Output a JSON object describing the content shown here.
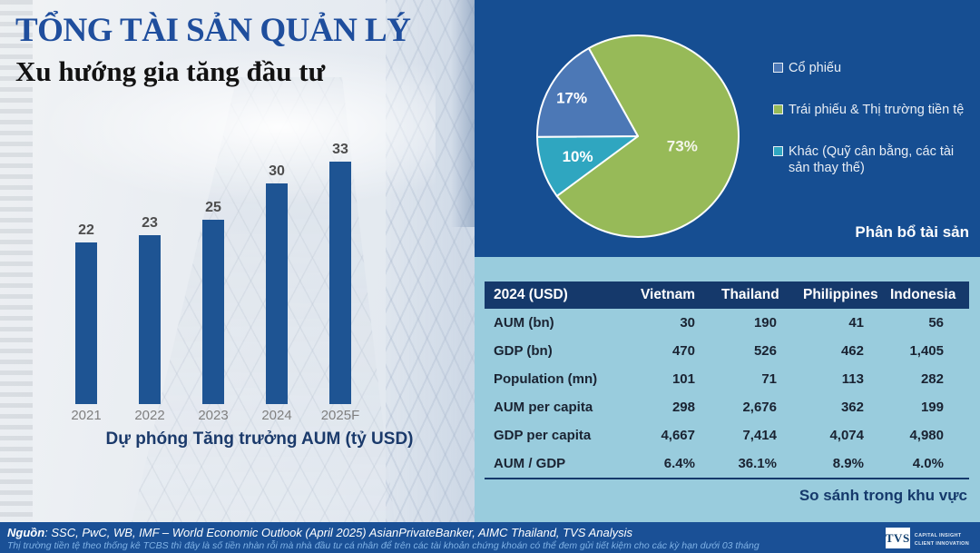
{
  "slide": {
    "title": "TỔNG TÀI SẢN QUẢN LÝ",
    "subtitle": "Xu hướng gia tăng đầu tư"
  },
  "colors": {
    "panel_blue": "#164E92",
    "panel_light_blue": "#99CCDD",
    "table_header_navy": "#15396B",
    "footer_blue": "#1A5096",
    "bar_blue": "#1E5493",
    "pie_green": "#97BA58",
    "pie_teal": "#2FA6C0",
    "pie_blue": "#4C78B6"
  },
  "chart_data": [
    {
      "type": "bar",
      "title": "Dự phóng Tăng trưởng AUM (tỷ USD)",
      "categories": [
        "2021",
        "2022",
        "2023",
        "2024",
        "2025F"
      ],
      "values": [
        22,
        23,
        25,
        30,
        33
      ],
      "ylim": [
        0,
        35
      ],
      "bar_color": "#1E5493",
      "data_labels": true,
      "grid": false,
      "axis_shown": false
    },
    {
      "type": "pie",
      "title": "Phân bổ tài sản",
      "start_angle_deg": -29.2,
      "slices": [
        {
          "label": "Trái phiếu & Thị trường tiền tệ",
          "value": 73,
          "color": "#97BA58",
          "pct_label_color": "#F5F6EC"
        },
        {
          "label": "Khác (Quỹ cân bằng, các tài sản thay thế)",
          "value": 10,
          "color": "#2FA6C0",
          "pct_label_color": "#FFFFFF"
        },
        {
          "label": "Cổ phiếu",
          "value": 17,
          "color": "#4C78B6",
          "pct_label_color": "#FFFFFF"
        }
      ],
      "legend_order": [
        2,
        0,
        1
      ],
      "legend_position": "right"
    },
    {
      "type": "table",
      "title": "So sánh trong khu vực",
      "header": [
        "2024 (USD)",
        "Vietnam",
        "Thailand",
        "Philippines",
        "Indonesia"
      ],
      "rows": [
        [
          "AUM (bn)",
          "30",
          "190",
          "41",
          "56"
        ],
        [
          "GDP (bn)",
          "470",
          "526",
          "462",
          "1,405"
        ],
        [
          "Population (mn)",
          "101",
          "71",
          "113",
          "282"
        ],
        [
          "AUM per capita",
          "298",
          "2,676",
          "362",
          "199"
        ],
        [
          "GDP per capita",
          "4,667",
          "7,414",
          "4,074",
          "4,980"
        ],
        [
          "AUM / GDP",
          "6.4%",
          "36.1%",
          "8.9%",
          "4.0%"
        ]
      ]
    }
  ],
  "footer": {
    "source_label": "Nguồn",
    "source_text": ": SSC, PwC, WB, IMF – World Economic Outlook (April 2025) AsianPrivateBanker, AIMC Thailand, TVS Analysis",
    "note": "Thị trường tiền tệ theo thống kê TCBS thì đây là số tiền nhàn rỗi mà nhà đầu tư cá nhân để trên các tài khoản chứng khoán có thể đem gửi tiết kiệm cho các kỳ hạn dưới 03 tháng",
    "logo_text": "TVS",
    "logo_tagline1": "CAPITAL INSIGHT",
    "logo_tagline2": "CLIENT INNOVATION"
  }
}
